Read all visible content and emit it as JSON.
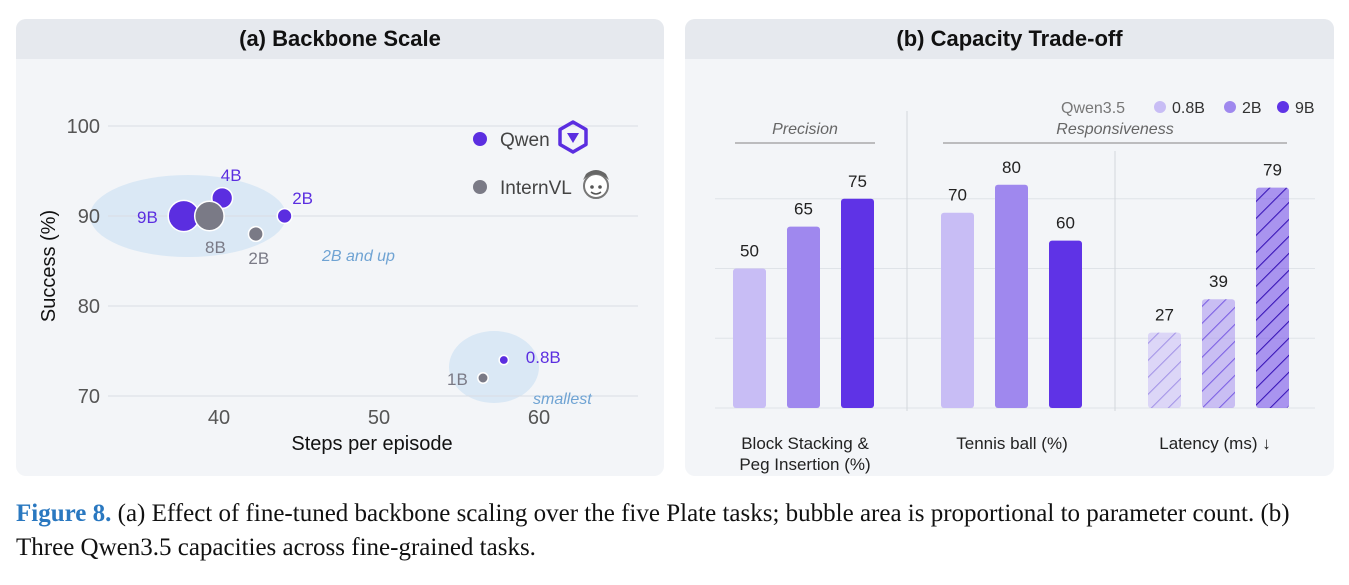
{
  "panel_a": {
    "title": "(a) Backbone Scale"
  },
  "panel_b": {
    "title": "(b) Capacity Trade-off"
  },
  "caption": {
    "label": "Figure 8.",
    "text": "(a) Effect of fine-tuned backbone scaling over the five Plate tasks; bubble area is proportional to parameter count. (b) Three Qwen3.5 capacities across fine-grained tasks."
  },
  "colors": {
    "qwen": "#5b2ee0",
    "internvl": "#7a7a86",
    "highlight": "#cfe2f4",
    "highlight_text": "#6fa3d3"
  },
  "icons": {
    "qwen": "qwen-logo-icon",
    "internvl": "internvl-logo-icon"
  },
  "chart_data": [
    {
      "type": "scatter",
      "title": "(a) Backbone Scale",
      "xlabel": "Steps per episode",
      "ylabel": "Success (%)",
      "xticks": [
        "40",
        "50",
        "60"
      ],
      "yticks": [
        "70",
        "80",
        "90",
        "100"
      ],
      "xlim": [
        34,
        66
      ],
      "ylim": [
        66,
        102
      ],
      "grid": true,
      "legend": {
        "position": "top-right",
        "entries": [
          "Qwen",
          "InternVL"
        ]
      },
      "series": [
        {
          "name": "Qwen",
          "points": [
            {
              "label": "9B",
              "x": 37.8,
              "y": 90,
              "params_b": 9
            },
            {
              "label": "4B",
              "x": 40.2,
              "y": 92,
              "params_b": 4
            },
            {
              "label": "2B",
              "x": 44.1,
              "y": 90,
              "params_b": 2
            },
            {
              "label": "0.8B",
              "x": 57.8,
              "y": 74,
              "params_b": 0.8
            }
          ]
        },
        {
          "name": "InternVL",
          "points": [
            {
              "label": "8B",
              "x": 39.4,
              "y": 90,
              "params_b": 8
            },
            {
              "label": "2B",
              "x": 42.3,
              "y": 88,
              "params_b": 2
            },
            {
              "label": "1B",
              "x": 56.5,
              "y": 72,
              "params_b": 1
            }
          ]
        }
      ],
      "annotations": [
        "2B and up",
        "smallest"
      ]
    },
    {
      "type": "bar",
      "title": "(b) Capacity Trade-off",
      "categories": [
        "Block Stacking & Peg Insertion (%)",
        "Tennis ball (%)",
        "Latency (ms) ↓"
      ],
      "series": [
        {
          "name": "0.8B",
          "values": [
            50,
            70,
            27
          ]
        },
        {
          "name": "2B",
          "values": [
            65,
            80,
            39
          ]
        },
        {
          "name": "9B",
          "values": [
            75,
            60,
            79
          ]
        }
      ],
      "legend": {
        "title": "Qwen3.5",
        "position": "top-right"
      },
      "group_labels": [
        "Precision",
        "Responsiveness"
      ],
      "ylim": [
        0,
        100
      ],
      "grid": true,
      "hatched_category": "Latency (ms) ↓"
    }
  ]
}
